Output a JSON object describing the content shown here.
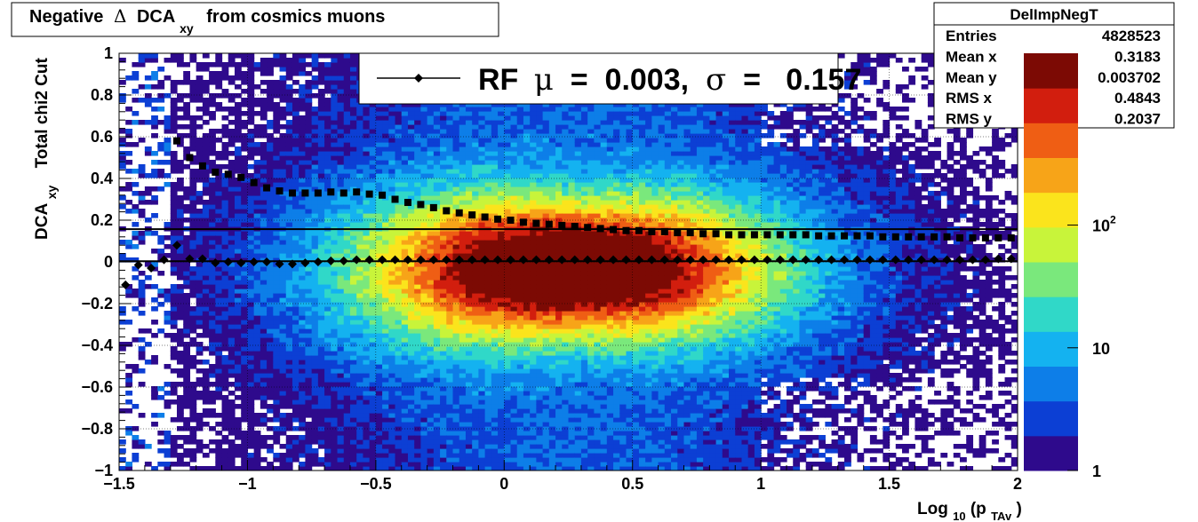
{
  "title": {
    "prefix": "Negative",
    "delta": "Δ",
    "main": "DCA",
    "sub": "xy",
    "suffix": "from cosmics muons"
  },
  "stats_box": {
    "name": "DelImpNegT",
    "rows": [
      {
        "label": "Entries",
        "value": "4828523"
      },
      {
        "label": "Mean x",
        "value": "0.3183"
      },
      {
        "label": "Mean y",
        "value": "0.003702"
      },
      {
        "label": "RMS x",
        "value": "0.4843"
      },
      {
        "label": "RMS y",
        "value": "0.2037"
      }
    ]
  },
  "legend": {
    "prefix": "RF",
    "mu": "μ",
    "eq1": " =  0.003, ",
    "sigma": "σ",
    "eq2": " =   0.157"
  },
  "y_title": {
    "main": "DCA",
    "sub": "xy",
    "extra": "Total chi2 Cut"
  },
  "x_title": {
    "main": "Log",
    "sub1": "10",
    "open": "(p",
    "sub2": "TAv",
    "close": ")"
  },
  "colorbar": {
    "ticks": [
      {
        "value": 1,
        "label": "1"
      },
      {
        "value": 10,
        "label": "10"
      },
      {
        "value": 100,
        "label": "10",
        "sup": "2"
      }
    ],
    "colors": [
      "#2e0a8c",
      "#0c3fd4",
      "#0d7ee8",
      "#14b2f0",
      "#30d8c8",
      "#7ae87c",
      "#c8f43a",
      "#fbe41c",
      "#f7a418",
      "#ef5e14",
      "#d21e0e",
      "#7c0a04"
    ]
  },
  "chart_data": {
    "type": "heatmap",
    "title": "Negative Δ DCA_xy from cosmics muons",
    "xlabel": "Log_10(p_TAv)",
    "ylabel": "DCA_xy Total chi2 Cut",
    "xlim": [
      -1.5,
      2
    ],
    "ylim": [
      -1,
      1
    ],
    "z_scale": "log",
    "x_ticks": [
      -1.5,
      -1,
      -0.5,
      0,
      0.5,
      1,
      1.5,
      2
    ],
    "y_ticks": [
      -1,
      -0.8,
      -0.6,
      -0.4,
      -0.2,
      0,
      0.2,
      0.4,
      0.6,
      0.8,
      1
    ],
    "x_tick_labels": [
      "−1.5",
      "−1",
      "−0.5",
      "0",
      "0.5",
      "1",
      "1.5",
      "2"
    ],
    "y_tick_labels": [
      "−1",
      "−0.8",
      "−0.6",
      "−0.4",
      "−0.2",
      "0",
      "0.2",
      "0.4",
      "0.6",
      "0.8",
      "1"
    ],
    "reference_lines": [
      {
        "y": 0.003
      },
      {
        "y": 0.157
      }
    ],
    "series": [
      {
        "name": "mean",
        "marker": "diamond",
        "x": [
          -1.475,
          -1.425,
          -1.375,
          -1.325,
          -1.275,
          -1.225,
          -1.175,
          -1.125,
          -1.075,
          -1.025,
          -0.975,
          -0.925,
          -0.875,
          -0.825,
          -0.775,
          -0.725,
          -0.675,
          -0.625,
          -0.575,
          -0.525,
          -0.475,
          -0.425,
          -0.375,
          -0.325,
          -0.275,
          -0.225,
          -0.175,
          -0.125,
          -0.075,
          -0.025,
          0.025,
          0.075,
          0.125,
          0.175,
          0.225,
          0.275,
          0.325,
          0.375,
          0.425,
          0.475,
          0.525,
          0.575,
          0.625,
          0.675,
          0.725,
          0.775,
          0.825,
          0.875,
          0.925,
          0.975,
          1.025,
          1.075,
          1.125,
          1.175,
          1.225,
          1.275,
          1.325,
          1.375,
          1.425,
          1.475,
          1.525,
          1.575,
          1.625,
          1.675,
          1.725,
          1.775,
          1.825,
          1.875,
          1.925,
          1.975
        ],
        "y": [
          -0.11,
          -0.015,
          -0.03,
          0.01,
          0.08,
          0.015,
          0.015,
          -0.005,
          0,
          -0.005,
          0,
          0,
          -0.01,
          -0.01,
          -0.005,
          0,
          0.005,
          0.005,
          0.01,
          0.01,
          0.01,
          0.01,
          0.01,
          0.01,
          0.01,
          0.01,
          0.01,
          0.01,
          0.01,
          0.01,
          0.01,
          0.01,
          0.01,
          0.01,
          0.01,
          0.01,
          0.01,
          0.01,
          0.01,
          0.01,
          0.01,
          0.01,
          0.01,
          0.01,
          0.01,
          0.01,
          0.01,
          0.01,
          0.01,
          0.01,
          0.01,
          0.01,
          0.01,
          0.01,
          0.01,
          0.01,
          0.01,
          0.01,
          0.01,
          0.01,
          0.01,
          0.01,
          0.01,
          0.01,
          0.01,
          0.01,
          0.01,
          0.01,
          0.015,
          0.015
        ]
      },
      {
        "name": "sigma",
        "marker": "square",
        "x": [
          -1.275,
          -1.225,
          -1.175,
          -1.125,
          -1.075,
          -1.025,
          -0.975,
          -0.925,
          -0.875,
          -0.825,
          -0.775,
          -0.725,
          -0.675,
          -0.625,
          -0.575,
          -0.525,
          -0.475,
          -0.425,
          -0.375,
          -0.325,
          -0.275,
          -0.225,
          -0.175,
          -0.125,
          -0.075,
          -0.025,
          0.025,
          0.075,
          0.125,
          0.175,
          0.225,
          0.275,
          0.325,
          0.375,
          0.425,
          0.475,
          0.525,
          0.575,
          0.625,
          0.675,
          0.725,
          0.775,
          0.825,
          0.875,
          0.925,
          0.975,
          1.025,
          1.075,
          1.125,
          1.175,
          1.225,
          1.275,
          1.325,
          1.375,
          1.425,
          1.475,
          1.525,
          1.575,
          1.625,
          1.675,
          1.725,
          1.775,
          1.825,
          1.875,
          1.925,
          1.975
        ],
        "y": [
          0.58,
          0.5,
          0.46,
          0.43,
          0.42,
          0.405,
          0.38,
          0.355,
          0.34,
          0.33,
          0.33,
          0.33,
          0.335,
          0.33,
          0.335,
          0.325,
          0.32,
          0.3,
          0.285,
          0.275,
          0.26,
          0.245,
          0.235,
          0.225,
          0.215,
          0.205,
          0.2,
          0.19,
          0.185,
          0.18,
          0.175,
          0.17,
          0.165,
          0.16,
          0.155,
          0.15,
          0.15,
          0.145,
          0.145,
          0.14,
          0.14,
          0.135,
          0.135,
          0.13,
          0.13,
          0.13,
          0.13,
          0.13,
          0.13,
          0.13,
          0.125,
          0.125,
          0.125,
          0.125,
          0.125,
          0.12,
          0.12,
          0.12,
          0.12,
          0.12,
          0.12,
          0.115,
          0.115,
          0.115,
          0.115,
          0.115
        ]
      }
    ]
  }
}
